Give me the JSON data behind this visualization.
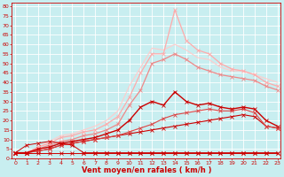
{
  "background_color": "#c8eef0",
  "grid_color": "#ffffff",
  "xlabel": "Vent moyen/en rafales ( km/h )",
  "xlabel_color": "#cc0000",
  "xlabel_fontsize": 6,
  "x_ticks": [
    0,
    1,
    2,
    3,
    4,
    5,
    6,
    7,
    8,
    9,
    10,
    11,
    12,
    13,
    14,
    15,
    16,
    17,
    18,
    19,
    20,
    21,
    22,
    23
  ],
  "y_ticks": [
    0,
    5,
    10,
    15,
    20,
    25,
    30,
    35,
    40,
    45,
    50,
    55,
    60,
    65,
    70,
    75,
    80
  ],
  "xlim": [
    -0.3,
    23.3
  ],
  "ylim": [
    0,
    82
  ],
  "series": [
    {
      "y": [
        3,
        3,
        3,
        3,
        3,
        3,
        3,
        3,
        3,
        3,
        3,
        3,
        3,
        3,
        3,
        3,
        3,
        3,
        3,
        3,
        3,
        3,
        3,
        3
      ],
      "color": "#cc0000",
      "linewidth": 0.7,
      "marker": "x",
      "markersize": 2.5,
      "zorder": 5
    },
    {
      "y": [
        3,
        7,
        8,
        9,
        8,
        7,
        3,
        3,
        3,
        3,
        3,
        3,
        3,
        3,
        3,
        3,
        3,
        3,
        3,
        3,
        3,
        3,
        3,
        3
      ],
      "color": "#cc0000",
      "linewidth": 0.7,
      "marker": "x",
      "markersize": 2.5,
      "zorder": 5
    },
    {
      "y": [
        3,
        3,
        4,
        5,
        7,
        8,
        9,
        10,
        11,
        12,
        13,
        14,
        15,
        16,
        17,
        18,
        19,
        20,
        21,
        22,
        23,
        22,
        17,
        16
      ],
      "color": "#cc0000",
      "linewidth": 0.8,
      "marker": "x",
      "markersize": 2.5,
      "zorder": 4
    },
    {
      "y": [
        3,
        3,
        4,
        5,
        7,
        8,
        9,
        10,
        11,
        12,
        14,
        16,
        18,
        21,
        23,
        24,
        25,
        26,
        25,
        25,
        26,
        24,
        17,
        16
      ],
      "color": "#dd4444",
      "linewidth": 0.8,
      "marker": "x",
      "markersize": 2.5,
      "zorder": 4
    },
    {
      "y": [
        3,
        3,
        5,
        6,
        8,
        9,
        10,
        11,
        13,
        15,
        20,
        27,
        30,
        28,
        35,
        30,
        28,
        29,
        27,
        26,
        27,
        26,
        20,
        17
      ],
      "color": "#cc0000",
      "linewidth": 1.0,
      "marker": "x",
      "markersize": 2.5,
      "zorder": 4
    },
    {
      "y": [
        3,
        3,
        5,
        7,
        9,
        10,
        12,
        13,
        15,
        18,
        28,
        36,
        50,
        52,
        55,
        52,
        48,
        46,
        44,
        43,
        42,
        41,
        38,
        36
      ],
      "color": "#ee8888",
      "linewidth": 0.9,
      "marker": "x",
      "markersize": 2.5,
      "zorder": 3
    },
    {
      "y": [
        3,
        3,
        6,
        8,
        11,
        12,
        14,
        15,
        18,
        22,
        32,
        45,
        55,
        55,
        78,
        62,
        57,
        55,
        50,
        47,
        46,
        44,
        40,
        38
      ],
      "color": "#ffaaaa",
      "linewidth": 0.9,
      "marker": "x",
      "markersize": 2.5,
      "zorder": 3
    },
    {
      "y": [
        3,
        3,
        6,
        9,
        12,
        13,
        15,
        17,
        20,
        25,
        38,
        48,
        58,
        57,
        60,
        57,
        53,
        52,
        48,
        46,
        46,
        44,
        42,
        40
      ],
      "color": "#ffcccc",
      "linewidth": 0.8,
      "marker": null,
      "markersize": 0,
      "zorder": 2
    }
  ]
}
